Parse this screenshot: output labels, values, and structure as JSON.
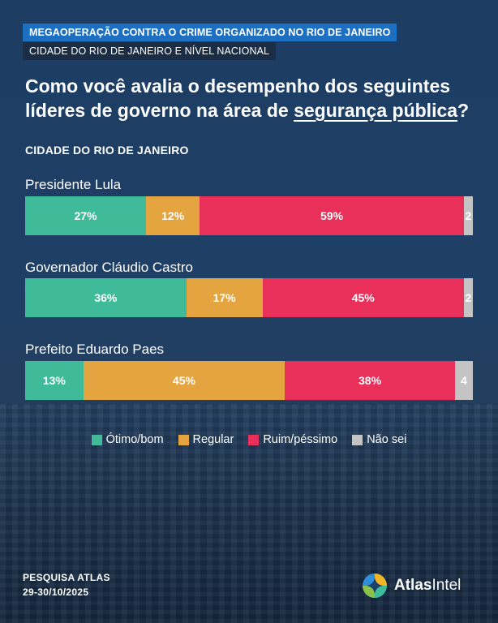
{
  "header": {
    "tag1": "MEGAOPERAÇÃO CONTRA O CRIME ORGANIZADO NO RIO DE JANEIRO",
    "tag2": "CIDADE DO RIO DE JANEIRO E NÍVEL NACIONAL"
  },
  "question": {
    "part1": "Como você avalia o desempenho dos seguintes líderes de governo na área de ",
    "underlined": "segurança pública",
    "end": "?"
  },
  "section_title": "CIDADE DO RIO DE JANEIRO",
  "colors": {
    "otimo_bom": "#3fbb9a",
    "regular": "#e4a540",
    "ruim_pessimo": "#e8305a",
    "nao_sei": "#c4c4c4"
  },
  "chart_data": {
    "type": "bar",
    "orientation": "horizontal",
    "stacked": true,
    "unit": "%",
    "categories": [
      "Presidente Lula",
      "Governador Cláudio Castro",
      "Prefeito Eduardo Paes"
    ],
    "series": [
      {
        "name": "Ótimo/bom",
        "values": [
          27,
          36,
          13
        ]
      },
      {
        "name": "Regular",
        "values": [
          12,
          17,
          45
        ]
      },
      {
        "name": "Ruim/péssimo",
        "values": [
          59,
          45,
          38
        ]
      },
      {
        "name": "Não sei",
        "values": [
          2,
          2,
          4
        ]
      }
    ],
    "labels": [
      [
        "27%",
        "12%",
        "59%",
        "2"
      ],
      [
        "36%",
        "17%",
        "45%",
        "2"
      ],
      [
        "13%",
        "45%",
        "38%",
        "4"
      ]
    ]
  },
  "footer": {
    "source_line1": "PESQUISA ATLAS",
    "source_line2": "29-30/10/2025",
    "logo_text_bold": "Atlas",
    "logo_text_regular": "Intel"
  }
}
